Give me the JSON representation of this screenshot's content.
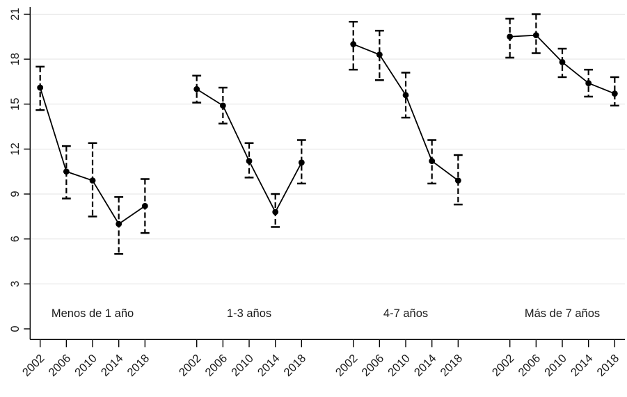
{
  "chart_data": {
    "type": "line",
    "subtype": "point-estimates-with-error-bars",
    "title": "",
    "xlabel": "",
    "ylabel": "",
    "x_categories": [
      "2002",
      "2006",
      "2010",
      "2014",
      "2018"
    ],
    "y_ticks": [
      0,
      3,
      6,
      9,
      12,
      15,
      18,
      21
    ],
    "ylim": [
      0,
      21.5
    ],
    "grid": true,
    "legend": "none",
    "panels": [
      {
        "label": "Menos de 1 año",
        "estimates": [
          16.1,
          10.5,
          9.9,
          7.0,
          8.2
        ],
        "ci_low": [
          14.6,
          8.7,
          7.5,
          5.0,
          6.4
        ],
        "ci_high": [
          17.5,
          12.2,
          12.4,
          8.8,
          10.0
        ]
      },
      {
        "label": "1-3 años",
        "estimates": [
          16.0,
          14.9,
          11.2,
          7.8,
          11.1
        ],
        "ci_low": [
          15.1,
          13.7,
          10.1,
          6.8,
          9.7
        ],
        "ci_high": [
          16.9,
          16.1,
          12.4,
          9.0,
          12.6
        ]
      },
      {
        "label": "4-7 años",
        "estimates": [
          19.0,
          18.3,
          15.6,
          11.2,
          9.9
        ],
        "ci_low": [
          17.3,
          16.6,
          14.1,
          9.7,
          8.3
        ],
        "ci_high": [
          20.5,
          19.9,
          17.1,
          12.6,
          11.6
        ]
      },
      {
        "label": "Más de 7 años",
        "estimates": [
          19.5,
          19.6,
          17.8,
          16.4,
          15.7
        ],
        "ci_low": [
          18.1,
          18.4,
          16.8,
          15.5,
          14.9
        ],
        "ci_high": [
          20.7,
          21.0,
          18.7,
          17.3,
          16.8
        ]
      }
    ],
    "styles": {
      "point_color": "#000000",
      "series_line_color": "#000000",
      "error_bar_color": "#000000",
      "error_bar_line_style": "dashed",
      "grid_color": "#e6e6e6",
      "axis_color": "#000000",
      "text_color": "#1a1a1a",
      "background": "#ffffff"
    }
  }
}
